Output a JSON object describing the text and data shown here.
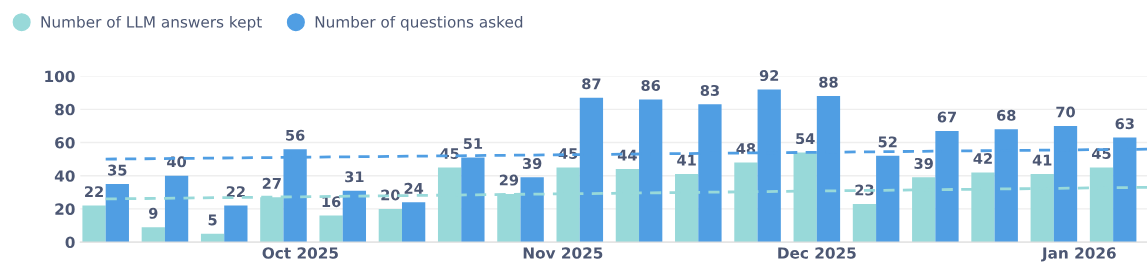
{
  "chart_data": {
    "type": "bar",
    "x": [
      "2025-09-08",
      "2025-09-15",
      "2025-09-22",
      "2025-09-29",
      "2025-10-06",
      "2025-10-13",
      "2025-10-20",
      "2025-10-27",
      "2025-11-03",
      "2025-11-10",
      "2025-11-17",
      "2025-11-24",
      "2025-12-01",
      "2025-12-08",
      "2025-12-15",
      "2025-12-22",
      "2025-12-29",
      "2026-01-05"
    ],
    "series": [
      {
        "name": "Number of LLM answers kept",
        "color": "#98d9d9",
        "values": [
          22,
          9,
          5,
          27,
          16,
          20,
          45,
          29,
          45,
          44,
          41,
          48,
          54,
          23,
          39,
          42,
          41,
          45
        ],
        "value_labels": [
          "22",
          "9",
          "5",
          "27",
          "16",
          "20",
          "45",
          "29",
          "45",
          "44",
          "41",
          "48",
          "54",
          "23",
          "39",
          "42",
          "41",
          "45"
        ]
      },
      {
        "name": "Number of questions asked",
        "color": "#509ee3",
        "values": [
          35,
          40,
          22,
          56,
          31,
          24,
          51,
          39,
          87,
          86,
          83,
          92,
          88,
          52,
          67,
          68,
          70,
          63
        ],
        "value_labels": [
          "35",
          "40",
          "22",
          "56",
          "31",
          "24",
          "51",
          "39",
          "87",
          "86",
          "83",
          "92",
          "88",
          "52",
          "67",
          "68",
          "70",
          "63"
        ]
      },
      {
        "type": "line",
        "color": "#98d9d9",
        "line_style": "dashed",
        "x": [
          "2025-09-08",
          "2026-01-09"
        ],
        "values": [
          26,
          33
        ]
      },
      {
        "type": "line",
        "color": "#509ee3",
        "line_style": "dashed",
        "x": [
          "2025-09-08",
          "2026-01-09"
        ],
        "values": [
          50,
          56
        ]
      }
    ],
    "xlim": [
      "2025-09-05",
      "2026-01-09"
    ],
    "xticks": [
      {
        "value": "2025-10-01",
        "label": "Oct 2025"
      },
      {
        "value": "2025-11-01",
        "label": "Nov 2025"
      },
      {
        "value": "2025-12-01",
        "label": "Dec 2025"
      },
      {
        "value": "2026-01-01",
        "label": "Jan 2026"
      }
    ],
    "ylim": [
      0,
      100
    ],
    "yticks": [
      0,
      20,
      40,
      60,
      80,
      100
    ],
    "grid": "y",
    "legend": "top left"
  }
}
